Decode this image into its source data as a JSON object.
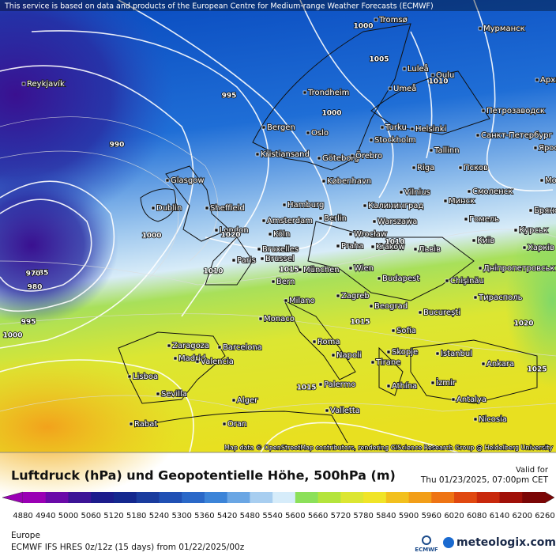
{
  "header": {
    "notice": "This service is based on data and products of the European Centre for Medium-range Weather Forecasts (ECMWF)"
  },
  "map": {
    "attribution": "Map data © OpenStreetMap contributors, rendering GIScience Research Group @ Heidelberg University",
    "cities": [
      "Reykjavík",
      "Tromsø",
      "Мурманск",
      "Luleå",
      "Oulu",
      "Арха",
      "Umeå",
      "Trondheim",
      "Петрозаводск",
      "Bergen",
      "Oslo",
      "Turku",
      "Helsinki",
      "Санкт-Петербург",
      "Stockholm",
      "Kristiansand",
      "Göteborg",
      "Örebro",
      "Tallinn",
      "Ярос",
      "Riga",
      "Псков",
      "Glasgow",
      "København",
      "Москва",
      "Смоленск",
      "Vilnius",
      "Dublin",
      "Sheffield",
      "Hamburg",
      "Калининград",
      "Минск",
      "Брянск",
      "Amsterdam",
      "Berlin",
      "Warszawa",
      "Гомель",
      "London",
      "Köln",
      "Wrocław",
      "Київ",
      "Курськ",
      "Paris",
      "Bruxelles",
      "Brussel",
      "Praha",
      "Kraków",
      "Львів",
      "Харків",
      "München",
      "Wien",
      "Дніпропетровськ",
      "Chişinău",
      "Budapest",
      "Bern",
      "Milano",
      "Zagreb",
      "Beograd",
      "București",
      "Тирасполь",
      "Monaco",
      "Roma",
      "Sofia",
      "Zaragoza",
      "Barcelona",
      "Madrid",
      "Valencia",
      "Napoli",
      "Skopje",
      "Istanbul",
      "Ankara",
      "Lisboa",
      "Sevilla",
      "Palermo",
      "Tirane",
      "Athína",
      "İzmir",
      "Alger",
      "Valletta",
      "Antalya",
      "Rabat",
      "Oran",
      "Nicosia"
    ],
    "isobar_labels": [
      1000,
      1005,
      1010,
      995,
      1000,
      990,
      985,
      980,
      970,
      995,
      1000,
      1000,
      1010,
      1015,
      1015,
      1020,
      1025,
      1015,
      1010,
      1020
    ]
  },
  "footer": {
    "title": "Luftdruck (hPa) und Geopotentielle Höhe, 500hPa (m)",
    "valid_label": "Valid for",
    "valid_time": "Thu 01/23/2025, 07:00pm CET",
    "region": "Europe",
    "model": "ECMWF IFS HRES 0z/12z (15 days) from  01/22/2025/00z",
    "logo_left": "ECMWF",
    "logo_right": "meteologix.com"
  },
  "colorbar": {
    "ticks": [
      4880,
      4940,
      5000,
      5060,
      5120,
      5180,
      5240,
      5300,
      5360,
      5420,
      5480,
      5540,
      5600,
      5660,
      5720,
      5780,
      5840,
      5900,
      5960,
      6020,
      6080,
      6140,
      6200,
      6260
    ],
    "colors": [
      "#9a00b4",
      "#6a0aa8",
      "#3c1496",
      "#1c1c8c",
      "#14288e",
      "#1a3c9e",
      "#2050b4",
      "#2a68c8",
      "#3c84d8",
      "#6aa6e4",
      "#a8cef0",
      "#d6ecfa",
      "#8ce05a",
      "#b4e43c",
      "#dce632",
      "#f0e428",
      "#f2c01e",
      "#f29e18",
      "#ee7414",
      "#e04810",
      "#c8280c",
      "#a01008",
      "#7a0606"
    ]
  }
}
